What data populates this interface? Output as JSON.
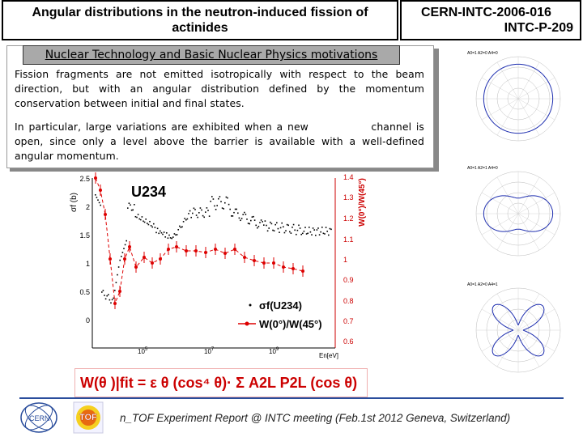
{
  "header": {
    "title_line1": "Angular distributions in the neutron-induced fission of",
    "title_line2": "actinides",
    "code_line1": "CERN-INTC-2006-016",
    "code_line2": "INTC-P-209"
  },
  "section": {
    "heading": "Nuclear Technology and Basic Nuclear Physics motivations",
    "para1": "Fission fragments are not emitted isotropically with respect to the beam direction, but with an angular distribution defined by the momentum conservation between initial and final states.",
    "para2_part1": "In particular, large variations are exhibited when a new",
    "para2_part2": "channel is open, since only a level above the barrier is available with a well-defined angular momentum."
  },
  "figure": {
    "plot_label": "U234",
    "left_axis_label": "σf (b)",
    "right_axis_label": "W(0°)/W(45°)",
    "x_axis_label": "En[eV]",
    "left_ticks": [
      "2.5",
      "2",
      "1.5",
      "1",
      "0.5",
      "0"
    ],
    "right_ticks": [
      "1.4",
      "1.3",
      "1.2",
      "1.1",
      "1",
      "0.9",
      "0.8",
      "0.7",
      "0.6"
    ],
    "x_ticks": [
      "10",
      "10",
      "10"
    ],
    "x_tick_exps": [
      "5",
      "7",
      "9"
    ],
    "legend": [
      {
        "label": "σf(U234)",
        "color": "#000000"
      },
      {
        "label": "W(0°)/W(45°)",
        "color": "#d00000"
      }
    ],
    "colors": {
      "sigma": "#000000",
      "ratio": "#d00000"
    }
  },
  "formula": {
    "text": "W(θ )|fit = ε  θ (cos⁴ θ)· Σ A2L P2L (cos θ)"
  },
  "polar_plots": [
    {
      "label": "A0=1  A2=0  A4=0"
    },
    {
      "label": "A0=1  A2=1  A4=0"
    },
    {
      "label": "A0=1  A2=0  A4=1"
    }
  ],
  "footer": {
    "text": "n_TOF Experiment Report @ INTC meeting (Feb.1st 2012 Geneva, Switzerland)",
    "logo_cern": "CERN",
    "logo_ntof": "TOF"
  }
}
